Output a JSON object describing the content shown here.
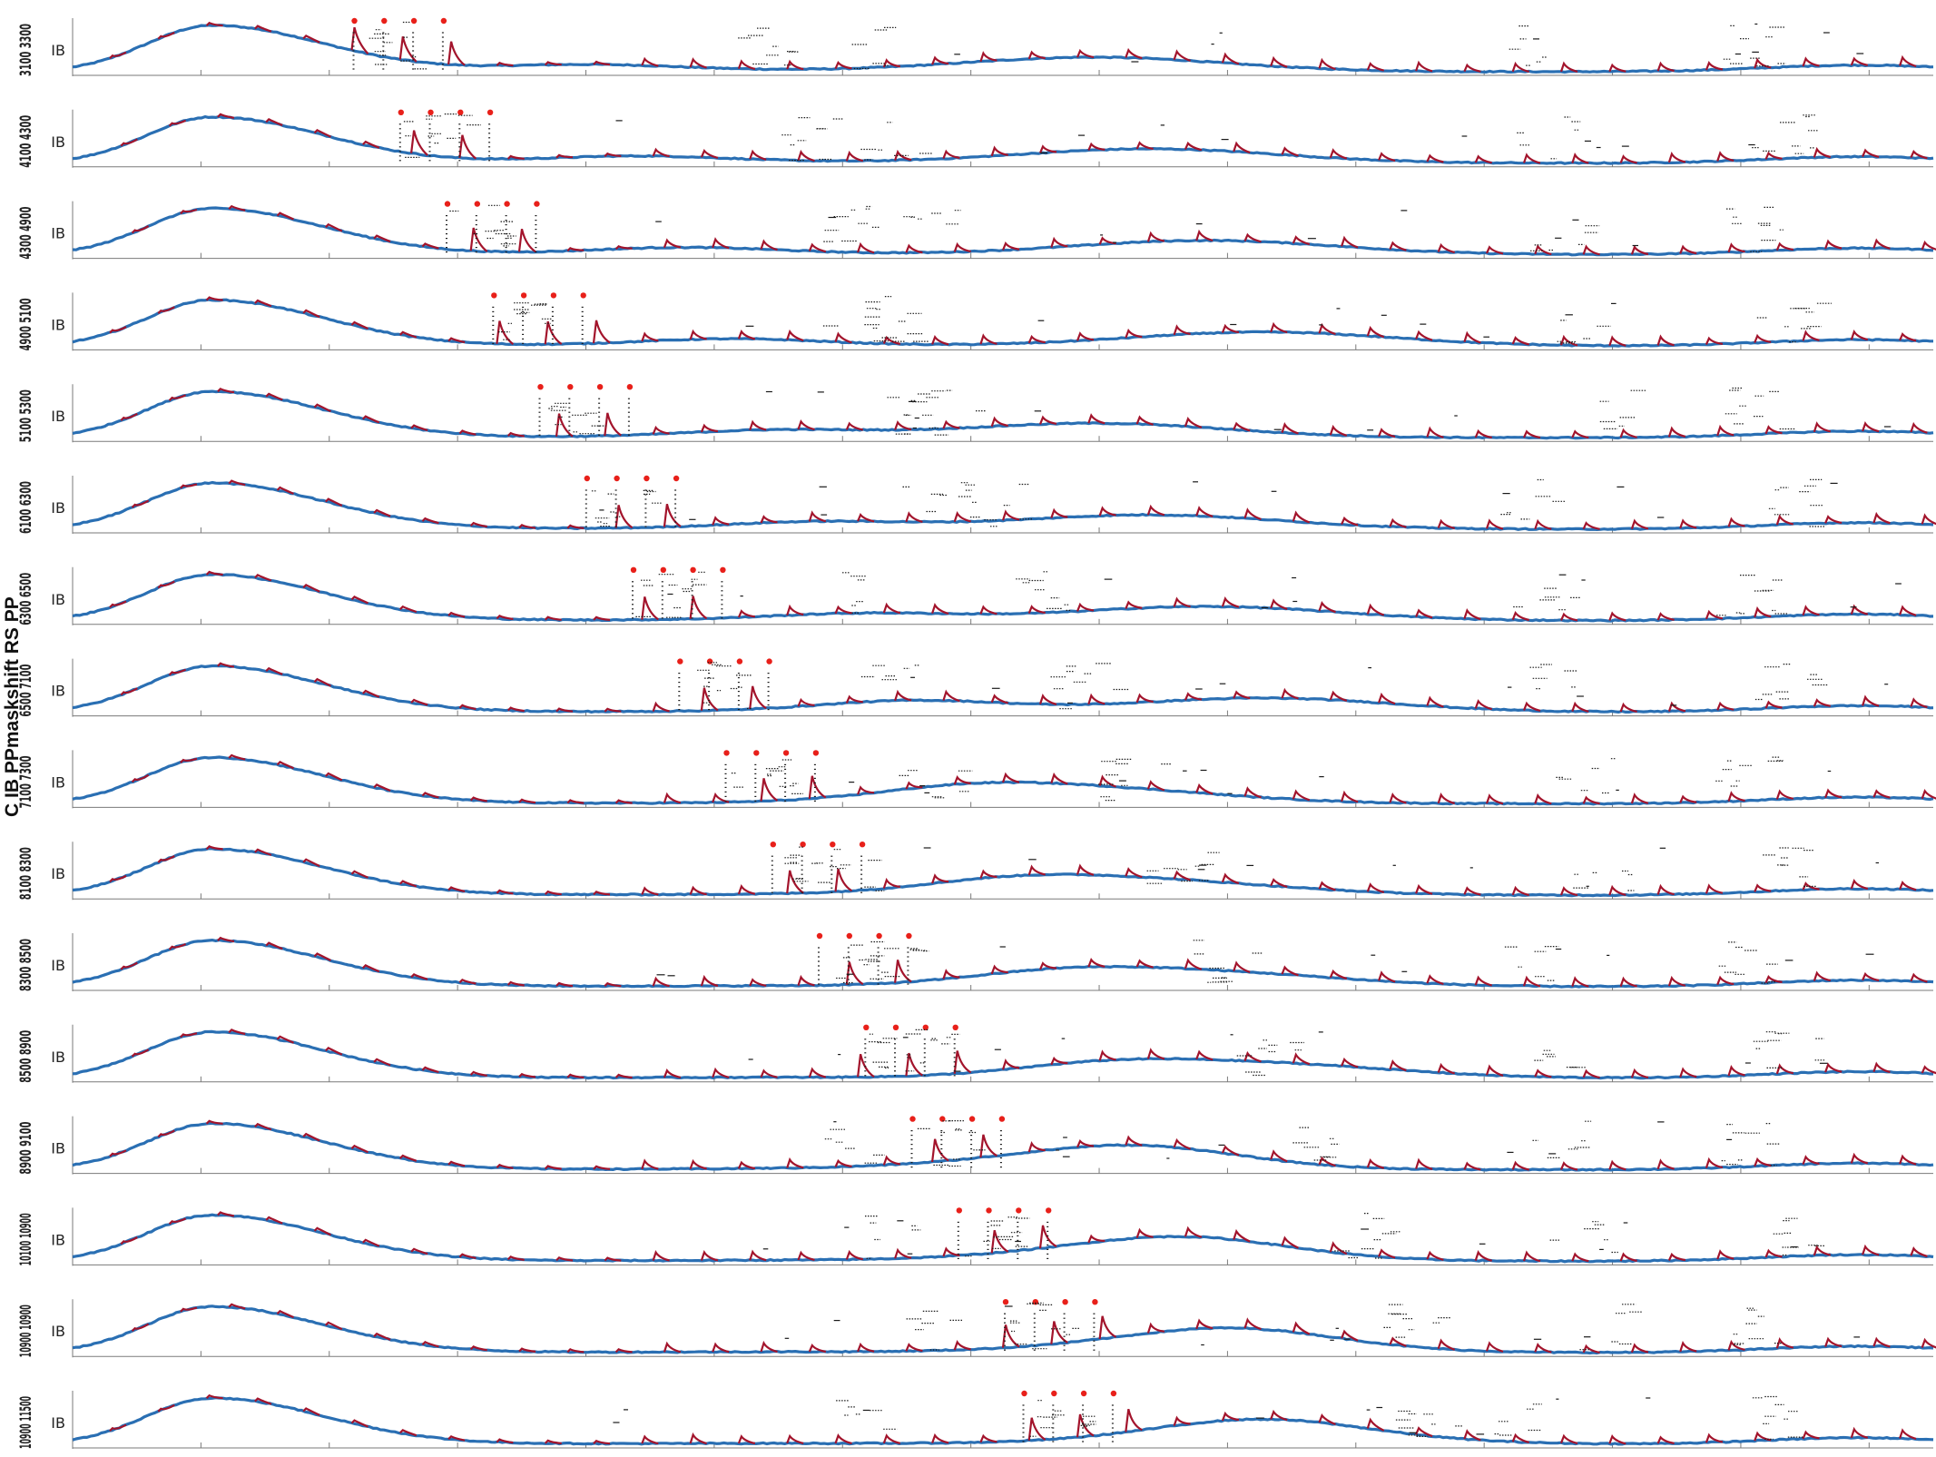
{
  "figure": {
    "ylabel": "C IB PPmaskshift RS PP",
    "colors": {
      "trace": "#2a6fb3",
      "transient": "#a3142c",
      "peak_marker": "#e8201a",
      "tick_mark": "#1a1a1a",
      "axis": "#7a7a7a"
    }
  },
  "chart_data": {
    "type": "line",
    "panels": 16,
    "panel_ytick": "IB",
    "series": [
      {
        "name": "",
        "style": "blue smooth baseline with slow oscillation"
      },
      {
        "name": "",
        "style": "red transient spikes"
      },
      {
        "name": "",
        "style": "red peak markers"
      }
    ],
    "panel_labels": [
      "3100 3300",
      "4100 4300",
      "4300 4900",
      "4900 5100",
      "5100 5300",
      "6100 6300",
      "6300 6500",
      "6500 7100",
      "7100 7300",
      "8100 8300",
      "8300 8500",
      "8500 8900",
      "8900 9100",
      "10100 10900",
      "10900 10900",
      "10900 11500"
    ],
    "stim_onsets": [
      0.15,
      0.175,
      0.2,
      0.225,
      0.25,
      0.275,
      0.3,
      0.325,
      0.35,
      0.375,
      0.4,
      0.425,
      0.45,
      0.475,
      0.5,
      0.51
    ],
    "xlim": [
      0,
      1
    ],
    "grid": false
  }
}
